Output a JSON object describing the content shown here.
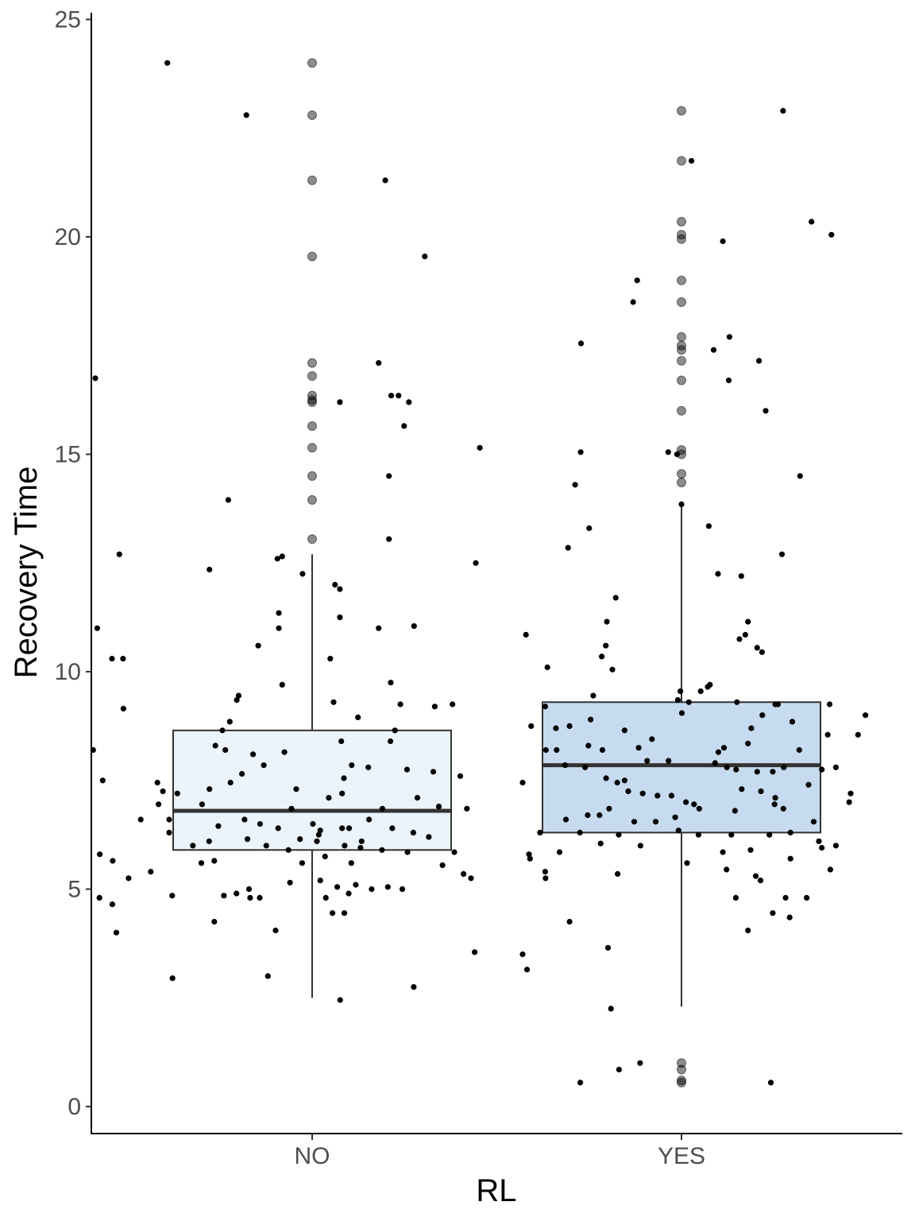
{
  "chart_data": {
    "type": "boxplot",
    "title": "",
    "xlabel": "RL",
    "ylabel": "Recovery Time",
    "categories": [
      "NO",
      "YES"
    ],
    "ylim": [
      -0.6,
      25.2
    ],
    "yticks": [
      0,
      5,
      10,
      15,
      20,
      25
    ],
    "grid": false,
    "legend": "none",
    "boxes": [
      {
        "category": "NO",
        "fill": "#ebf3fb",
        "q1": 5.9,
        "median": 6.8,
        "q3": 8.65,
        "whisker_low": 2.5,
        "whisker_high": 12.7,
        "outliers": [
          24.0,
          22.8,
          21.3,
          19.55,
          17.1,
          16.8,
          16.35,
          16.25,
          16.2,
          15.65,
          15.15,
          14.5,
          13.95,
          13.05
        ]
      },
      {
        "category": "YES",
        "fill": "#c6dbef",
        "q1": 6.3,
        "median": 7.85,
        "q3": 9.3,
        "whisker_low": 2.3,
        "whisker_high": 13.85,
        "outliers": [
          22.9,
          21.75,
          20.35,
          20.05,
          19.95,
          19.0,
          18.5,
          17.7,
          17.5,
          17.4,
          17.15,
          16.7,
          16.0,
          15.1,
          15.0,
          14.55,
          14.35,
          1.0,
          0.85,
          0.6,
          0.55
        ]
      }
    ],
    "jitter_points": [
      {
        "x": -0.392,
        "y": 24.0
      },
      {
        "x": -0.178,
        "y": 22.8
      },
      {
        "x": 0.198,
        "y": 21.3
      },
      {
        "x": 0.305,
        "y": 19.55
      },
      {
        "x": 0.18,
        "y": 17.1
      },
      {
        "x": 0.214,
        "y": 16.35
      },
      {
        "x": 0.234,
        "y": 16.35
      },
      {
        "x": 0.262,
        "y": 16.2
      },
      {
        "x": 0.075,
        "y": 16.2
      },
      {
        "x": 0.249,
        "y": 15.65
      },
      {
        "x": 0.454,
        "y": 15.15
      },
      {
        "x": -0.587,
        "y": 16.75
      },
      {
        "x": 0.208,
        "y": 14.5
      },
      {
        "x": -0.227,
        "y": 13.95
      },
      {
        "x": 0.208,
        "y": 13.05
      },
      {
        "x": -0.522,
        "y": 12.7
      },
      {
        "x": -0.278,
        "y": 12.35
      },
      {
        "x": -0.081,
        "y": 12.65
      },
      {
        "x": -0.094,
        "y": 12.6
      },
      {
        "x": -0.026,
        "y": 12.25
      },
      {
        "x": 0.062,
        "y": 12.0
      },
      {
        "x": 0.075,
        "y": 11.9
      },
      {
        "x": 0.075,
        "y": 11.25
      },
      {
        "x": 0.443,
        "y": 12.5
      },
      {
        "x": -0.09,
        "y": 11.35
      },
      {
        "x": -0.09,
        "y": 11.0
      },
      {
        "x": 0.18,
        "y": 11.0
      },
      {
        "x": 0.276,
        "y": 11.05
      },
      {
        "x": -0.582,
        "y": 11.0
      },
      {
        "x": -0.146,
        "y": 10.6
      },
      {
        "x": -0.542,
        "y": 10.3
      },
      {
        "x": -0.512,
        "y": 10.3
      },
      {
        "x": 0.049,
        "y": 10.3
      },
      {
        "x": -0.081,
        "y": 9.7
      },
      {
        "x": 0.213,
        "y": 9.75
      },
      {
        "x": -0.199,
        "y": 9.45
      },
      {
        "x": -0.204,
        "y": 9.35
      },
      {
        "x": 0.058,
        "y": 9.3
      },
      {
        "x": 0.239,
        "y": 9.25
      },
      {
        "x": 0.332,
        "y": 9.2
      },
      {
        "x": 0.38,
        "y": 9.25
      },
      {
        "x": -0.511,
        "y": 9.15
      },
      {
        "x": 0.124,
        "y": 8.95
      },
      {
        "x": 0.224,
        "y": 8.65
      },
      {
        "x": 0.212,
        "y": 8.4
      },
      {
        "x": -0.223,
        "y": 8.85
      },
      {
        "x": -0.243,
        "y": 8.65
      },
      {
        "x": -0.593,
        "y": 8.2
      },
      {
        "x": -0.262,
        "y": 8.3
      },
      {
        "x": -0.235,
        "y": 8.2
      },
      {
        "x": 0.079,
        "y": 8.4
      },
      {
        "x": -0.075,
        "y": 8.15
      },
      {
        "x": -0.16,
        "y": 8.1
      },
      {
        "x": -0.131,
        "y": 7.85
      },
      {
        "x": 0.107,
        "y": 7.85
      },
      {
        "x": 0.152,
        "y": 7.8
      },
      {
        "x": 0.257,
        "y": 7.75
      },
      {
        "x": 0.328,
        "y": 7.7
      },
      {
        "x": 0.401,
        "y": 7.6
      },
      {
        "x": -0.19,
        "y": 7.65
      },
      {
        "x": -0.221,
        "y": 7.45
      },
      {
        "x": -0.278,
        "y": 7.3
      },
      {
        "x": -0.365,
        "y": 7.2
      },
      {
        "x": -0.298,
        "y": 6.95
      },
      {
        "x": 0.045,
        "y": 7.1
      },
      {
        "x": 0.081,
        "y": 7.2
      },
      {
        "x": 0.285,
        "y": 7.1
      },
      {
        "x": 0.343,
        "y": 6.9
      },
      {
        "x": 0.419,
        "y": 6.85
      },
      {
        "x": -0.416,
        "y": 6.95
      },
      {
        "x": -0.464,
        "y": 6.6
      },
      {
        "x": -0.387,
        "y": 6.6
      },
      {
        "x": -0.254,
        "y": 6.45
      },
      {
        "x": -0.141,
        "y": 6.5
      },
      {
        "x": -0.092,
        "y": 6.4
      },
      {
        "x": -0.033,
        "y": 6.15
      },
      {
        "x": 0.018,
        "y": 6.25
      },
      {
        "x": 0.081,
        "y": 6.4
      },
      {
        "x": 0.1,
        "y": 6.4
      },
      {
        "x": 0.154,
        "y": 6.6
      },
      {
        "x": 0.217,
        "y": 6.4
      },
      {
        "x": 0.274,
        "y": 6.3
      },
      {
        "x": 0.316,
        "y": 6.2
      },
      {
        "x": -0.387,
        "y": 6.3
      },
      {
        "x": -0.323,
        "y": 6.0
      },
      {
        "x": -0.279,
        "y": 6.1
      },
      {
        "x": -0.175,
        "y": 6.15
      },
      {
        "x": -0.124,
        "y": 6.0
      },
      {
        "x": -0.064,
        "y": 5.9
      },
      {
        "x": 0.013,
        "y": 6.1
      },
      {
        "x": 0.088,
        "y": 6.0
      },
      {
        "x": 0.131,
        "y": 5.95
      },
      {
        "x": 0.189,
        "y": 5.9
      },
      {
        "x": 0.258,
        "y": 5.85
      },
      {
        "x": 0.385,
        "y": 5.85
      },
      {
        "x": -0.575,
        "y": 5.8
      },
      {
        "x": -0.54,
        "y": 5.65
      },
      {
        "x": -0.3,
        "y": 5.6
      },
      {
        "x": -0.265,
        "y": 5.65
      },
      {
        "x": -0.027,
        "y": 5.6
      },
      {
        "x": 0.035,
        "y": 5.75
      },
      {
        "x": 0.106,
        "y": 5.6
      },
      {
        "x": 0.353,
        "y": 5.55
      },
      {
        "x": 0.41,
        "y": 5.35
      },
      {
        "x": 0.43,
        "y": 5.25
      },
      {
        "x": -0.497,
        "y": 5.25
      },
      {
        "x": -0.437,
        "y": 5.4
      },
      {
        "x": -0.239,
        "y": 4.85
      },
      {
        "x": -0.205,
        "y": 4.9
      },
      {
        "x": -0.171,
        "y": 5.0
      },
      {
        "x": -0.06,
        "y": 5.15
      },
      {
        "x": 0.022,
        "y": 5.2
      },
      {
        "x": 0.068,
        "y": 5.05
      },
      {
        "x": 0.118,
        "y": 5.1
      },
      {
        "x": 0.161,
        "y": 5.0
      },
      {
        "x": 0.205,
        "y": 5.05
      },
      {
        "x": 0.244,
        "y": 5.0
      },
      {
        "x": -0.576,
        "y": 4.8
      },
      {
        "x": -0.541,
        "y": 4.65
      },
      {
        "x": -0.379,
        "y": 4.85
      },
      {
        "x": -0.168,
        "y": 4.8
      },
      {
        "x": -0.142,
        "y": 4.8
      },
      {
        "x": 0.037,
        "y": 4.8
      },
      {
        "x": 0.099,
        "y": 4.9
      },
      {
        "x": -0.53,
        "y": 4.0
      },
      {
        "x": -0.265,
        "y": 4.25
      },
      {
        "x": -0.099,
        "y": 4.05
      },
      {
        "x": 0.055,
        "y": 4.45
      },
      {
        "x": 0.087,
        "y": 4.45
      },
      {
        "x": 0.275,
        "y": 2.75
      },
      {
        "x": -0.378,
        "y": 2.95
      },
      {
        "x": -0.12,
        "y": 3.0
      },
      {
        "x": 0.076,
        "y": 2.45
      },
      {
        "x": 0.44,
        "y": 3.55
      },
      {
        "x": -0.567,
        "y": 7.5
      },
      {
        "x": -0.419,
        "y": 7.45
      },
      {
        "x": -0.404,
        "y": 7.25
      },
      {
        "x": -0.043,
        "y": 7.3
      },
      {
        "x": 0.086,
        "y": 7.55
      },
      {
        "x": -0.056,
        "y": 6.85
      },
      {
        "x": -0.183,
        "y": 6.6
      },
      {
        "x": 0.002,
        "y": 6.5
      },
      {
        "x": 0.022,
        "y": 6.35
      },
      {
        "x": 0.134,
        "y": 6.1
      },
      {
        "x": 0.19,
        "y": 6.85
      },
      {
        "x": 1.027,
        "y": 21.75
      },
      {
        "x": 1.275,
        "y": 22.9
      },
      {
        "x": 1.352,
        "y": 20.35
      },
      {
        "x": 1.406,
        "y": 20.05
      },
      {
        "x": 1.112,
        "y": 19.9
      },
      {
        "x": 0.88,
        "y": 19.0
      },
      {
        "x": 0.869,
        "y": 18.5
      },
      {
        "x": 0.728,
        "y": 17.55
      },
      {
        "x": 1.087,
        "y": 17.4
      },
      {
        "x": 1.13,
        "y": 17.7
      },
      {
        "x": 1.21,
        "y": 17.15
      },
      {
        "x": 1.128,
        "y": 16.7
      },
      {
        "x": 1.228,
        "y": 16.0
      },
      {
        "x": 0.727,
        "y": 15.05
      },
      {
        "x": 0.964,
        "y": 15.05
      },
      {
        "x": 0.988,
        "y": 15.0
      },
      {
        "x": 1.321,
        "y": 14.5
      },
      {
        "x": 0.712,
        "y": 14.3
      },
      {
        "x": 1.0,
        "y": 13.85
      },
      {
        "x": 0.75,
        "y": 13.3
      },
      {
        "x": 1.074,
        "y": 13.35
      },
      {
        "x": 0.693,
        "y": 12.85
      },
      {
        "x": 1.099,
        "y": 12.25
      },
      {
        "x": 1.162,
        "y": 12.2
      },
      {
        "x": 1.272,
        "y": 12.7
      },
      {
        "x": 0.822,
        "y": 11.7
      },
      {
        "x": 0.798,
        "y": 11.15
      },
      {
        "x": 1.18,
        "y": 11.15
      },
      {
        "x": 0.795,
        "y": 10.6
      },
      {
        "x": 0.784,
        "y": 10.35
      },
      {
        "x": 1.157,
        "y": 10.75
      },
      {
        "x": 1.173,
        "y": 10.85
      },
      {
        "x": 1.205,
        "y": 10.55
      },
      {
        "x": 1.218,
        "y": 10.45
      },
      {
        "x": 0.579,
        "y": 10.85
      },
      {
        "x": 0.637,
        "y": 10.1
      },
      {
        "x": 0.813,
        "y": 10.05
      },
      {
        "x": 0.997,
        "y": 9.55
      },
      {
        "x": 1.052,
        "y": 9.55
      },
      {
        "x": 1.071,
        "y": 9.65
      },
      {
        "x": 1.077,
        "y": 9.7
      },
      {
        "x": 0.761,
        "y": 9.45
      },
      {
        "x": 0.99,
        "y": 9.35
      },
      {
        "x": 1.02,
        "y": 9.3
      },
      {
        "x": 1.15,
        "y": 9.3
      },
      {
        "x": 1.254,
        "y": 9.25
      },
      {
        "x": 1.261,
        "y": 9.25
      },
      {
        "x": 0.631,
        "y": 9.2
      },
      {
        "x": 1.3,
        "y": 8.85
      },
      {
        "x": 1.401,
        "y": 9.25
      },
      {
        "x": 1.498,
        "y": 9.0
      },
      {
        "x": 0.593,
        "y": 8.75
      },
      {
        "x": 0.66,
        "y": 8.7
      },
      {
        "x": 0.697,
        "y": 8.75
      },
      {
        "x": 0.754,
        "y": 8.9
      },
      {
        "x": 0.846,
        "y": 8.65
      },
      {
        "x": 0.92,
        "y": 8.45
      },
      {
        "x": 1.001,
        "y": 9.05
      },
      {
        "x": 1.115,
        "y": 8.25
      },
      {
        "x": 1.189,
        "y": 8.7
      },
      {
        "x": 1.219,
        "y": 9.0
      },
      {
        "x": 0.633,
        "y": 8.2
      },
      {
        "x": 0.662,
        "y": 8.2
      },
      {
        "x": 0.748,
        "y": 8.3
      },
      {
        "x": 0.786,
        "y": 8.2
      },
      {
        "x": 0.884,
        "y": 8.25
      },
      {
        "x": 1.1,
        "y": 8.15
      },
      {
        "x": 1.18,
        "y": 8.35
      },
      {
        "x": 1.319,
        "y": 8.2
      },
      {
        "x": 1.396,
        "y": 8.55
      },
      {
        "x": 1.478,
        "y": 8.55
      },
      {
        "x": 0.685,
        "y": 7.85
      },
      {
        "x": 0.739,
        "y": 7.8
      },
      {
        "x": 0.846,
        "y": 7.5
      },
      {
        "x": 0.907,
        "y": 7.95
      },
      {
        "x": 0.965,
        "y": 7.95
      },
      {
        "x": 1.091,
        "y": 7.9
      },
      {
        "x": 1.123,
        "y": 7.8
      },
      {
        "x": 1.148,
        "y": 7.75
      },
      {
        "x": 1.205,
        "y": 7.7
      },
      {
        "x": 1.247,
        "y": 7.7
      },
      {
        "x": 1.277,
        "y": 7.8
      },
      {
        "x": 1.38,
        "y": 7.75
      },
      {
        "x": 1.418,
        "y": 7.8
      },
      {
        "x": 0.57,
        "y": 7.45
      },
      {
        "x": 0.796,
        "y": 7.55
      },
      {
        "x": 0.826,
        "y": 7.45
      },
      {
        "x": 0.856,
        "y": 7.25
      },
      {
        "x": 0.895,
        "y": 7.2
      },
      {
        "x": 0.935,
        "y": 7.15
      },
      {
        "x": 0.973,
        "y": 7.15
      },
      {
        "x": 1.012,
        "y": 7.0
      },
      {
        "x": 1.034,
        "y": 6.95
      },
      {
        "x": 1.163,
        "y": 7.3
      },
      {
        "x": 1.215,
        "y": 7.25
      },
      {
        "x": 1.254,
        "y": 7.1
      },
      {
        "x": 1.344,
        "y": 7.4
      },
      {
        "x": 1.458,
        "y": 7.2
      },
      {
        "x": 0.687,
        "y": 6.6
      },
      {
        "x": 0.746,
        "y": 6.7
      },
      {
        "x": 0.778,
        "y": 6.7
      },
      {
        "x": 0.804,
        "y": 6.85
      },
      {
        "x": 0.872,
        "y": 6.55
      },
      {
        "x": 0.93,
        "y": 6.55
      },
      {
        "x": 0.983,
        "y": 6.65
      },
      {
        "x": 1.048,
        "y": 6.85
      },
      {
        "x": 1.145,
        "y": 6.8
      },
      {
        "x": 1.252,
        "y": 6.95
      },
      {
        "x": 1.276,
        "y": 6.85
      },
      {
        "x": 0.617,
        "y": 6.3
      },
      {
        "x": 0.725,
        "y": 6.3
      },
      {
        "x": 0.781,
        "y": 6.05
      },
      {
        "x": 0.83,
        "y": 6.25
      },
      {
        "x": 0.992,
        "y": 6.35
      },
      {
        "x": 1.046,
        "y": 6.25
      },
      {
        "x": 1.135,
        "y": 6.25
      },
      {
        "x": 1.238,
        "y": 6.25
      },
      {
        "x": 1.295,
        "y": 6.3
      },
      {
        "x": 1.372,
        "y": 6.1
      },
      {
        "x": 1.418,
        "y": 6.0
      },
      {
        "x": 0.587,
        "y": 5.8
      },
      {
        "x": 0.59,
        "y": 5.7
      },
      {
        "x": 0.67,
        "y": 5.85
      },
      {
        "x": 0.889,
        "y": 6.0
      },
      {
        "x": 1.015,
        "y": 5.6
      },
      {
        "x": 1.112,
        "y": 5.85
      },
      {
        "x": 1.187,
        "y": 5.9
      },
      {
        "x": 1.295,
        "y": 5.7
      },
      {
        "x": 1.403,
        "y": 5.45
      },
      {
        "x": 0.631,
        "y": 5.4
      },
      {
        "x": 0.632,
        "y": 5.25
      },
      {
        "x": 0.827,
        "y": 5.35
      },
      {
        "x": 1.122,
        "y": 5.45
      },
      {
        "x": 1.201,
        "y": 5.3
      },
      {
        "x": 1.214,
        "y": 5.2
      },
      {
        "x": 1.147,
        "y": 4.8
      },
      {
        "x": 1.247,
        "y": 4.45
      },
      {
        "x": 1.293,
        "y": 4.35
      },
      {
        "x": 1.282,
        "y": 4.8
      },
      {
        "x": 1.339,
        "y": 4.8
      },
      {
        "x": 0.697,
        "y": 4.25
      },
      {
        "x": 1.18,
        "y": 4.05
      },
      {
        "x": 0.57,
        "y": 3.5
      },
      {
        "x": 0.582,
        "y": 3.15
      },
      {
        "x": 0.801,
        "y": 3.65
      },
      {
        "x": 0.809,
        "y": 2.25
      },
      {
        "x": 0.888,
        "y": 1.0
      },
      {
        "x": 0.831,
        "y": 0.85
      },
      {
        "x": 0.726,
        "y": 0.55
      },
      {
        "x": 1.242,
        "y": 0.55
      },
      {
        "x": 1.454,
        "y": 7.0
      },
      {
        "x": 1.38,
        "y": 5.95
      },
      {
        "x": 1.358,
        "y": 6.55
      }
    ]
  }
}
